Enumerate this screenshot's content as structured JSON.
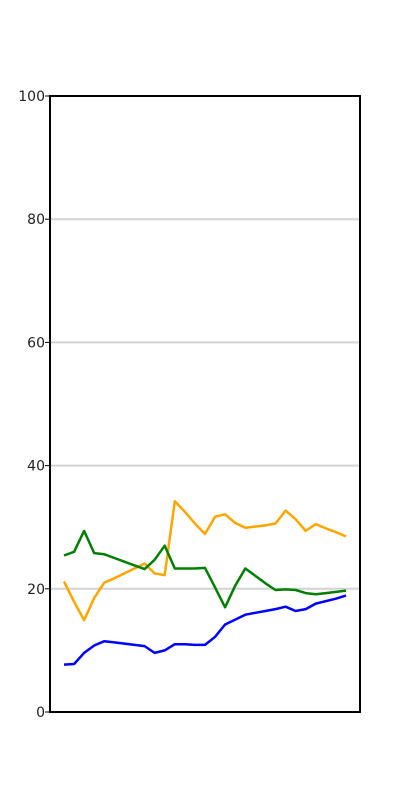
{
  "chart_data": {
    "type": "line",
    "ylim": [
      0,
      100
    ],
    "yticks": [
      "0",
      "20",
      "40",
      "60",
      "80",
      "100"
    ],
    "grid": "horizontal",
    "x": [
      1,
      2,
      3,
      4,
      5,
      6,
      7,
      8,
      9,
      10,
      11,
      12,
      13,
      14,
      15,
      16,
      17,
      18,
      19,
      20,
      21,
      22,
      23,
      24,
      25,
      26,
      27,
      28,
      29
    ],
    "series": [
      {
        "color": "#ffa500",
        "values": [
          21.2,
          17.9,
          14.9,
          18.5,
          21.0,
          21.7,
          22.5,
          23.3,
          24.1,
          22.5,
          22.2,
          34.2,
          32.5,
          30.6,
          28.9,
          31.7,
          32.1,
          30.7,
          29.9,
          30.1,
          30.3,
          30.6,
          32.7,
          31.3,
          29.4,
          30.5,
          29.8,
          29.2,
          28.5
        ]
      },
      {
        "color": "#008000",
        "values": [
          25.4,
          26.0,
          29.4,
          25.8,
          25.6,
          25.0,
          24.4,
          23.8,
          23.2,
          24.7,
          27.0,
          23.3,
          23.3,
          23.3,
          23.4,
          20.2,
          17.0,
          20.5,
          23.3,
          22.1,
          20.9,
          19.8,
          19.9,
          19.8,
          19.3,
          19.1,
          19.3,
          19.5,
          19.7
        ]
      },
      {
        "color": "#0000ff",
        "values": [
          7.7,
          7.8,
          9.6,
          10.8,
          11.5,
          11.3,
          11.1,
          10.9,
          10.7,
          9.6,
          10.0,
          11.0,
          11.0,
          10.9,
          10.9,
          12.2,
          14.2,
          15.0,
          15.8,
          16.1,
          16.4,
          16.7,
          17.1,
          16.4,
          16.7,
          17.6,
          18.0,
          18.4,
          18.9
        ]
      }
    ]
  }
}
